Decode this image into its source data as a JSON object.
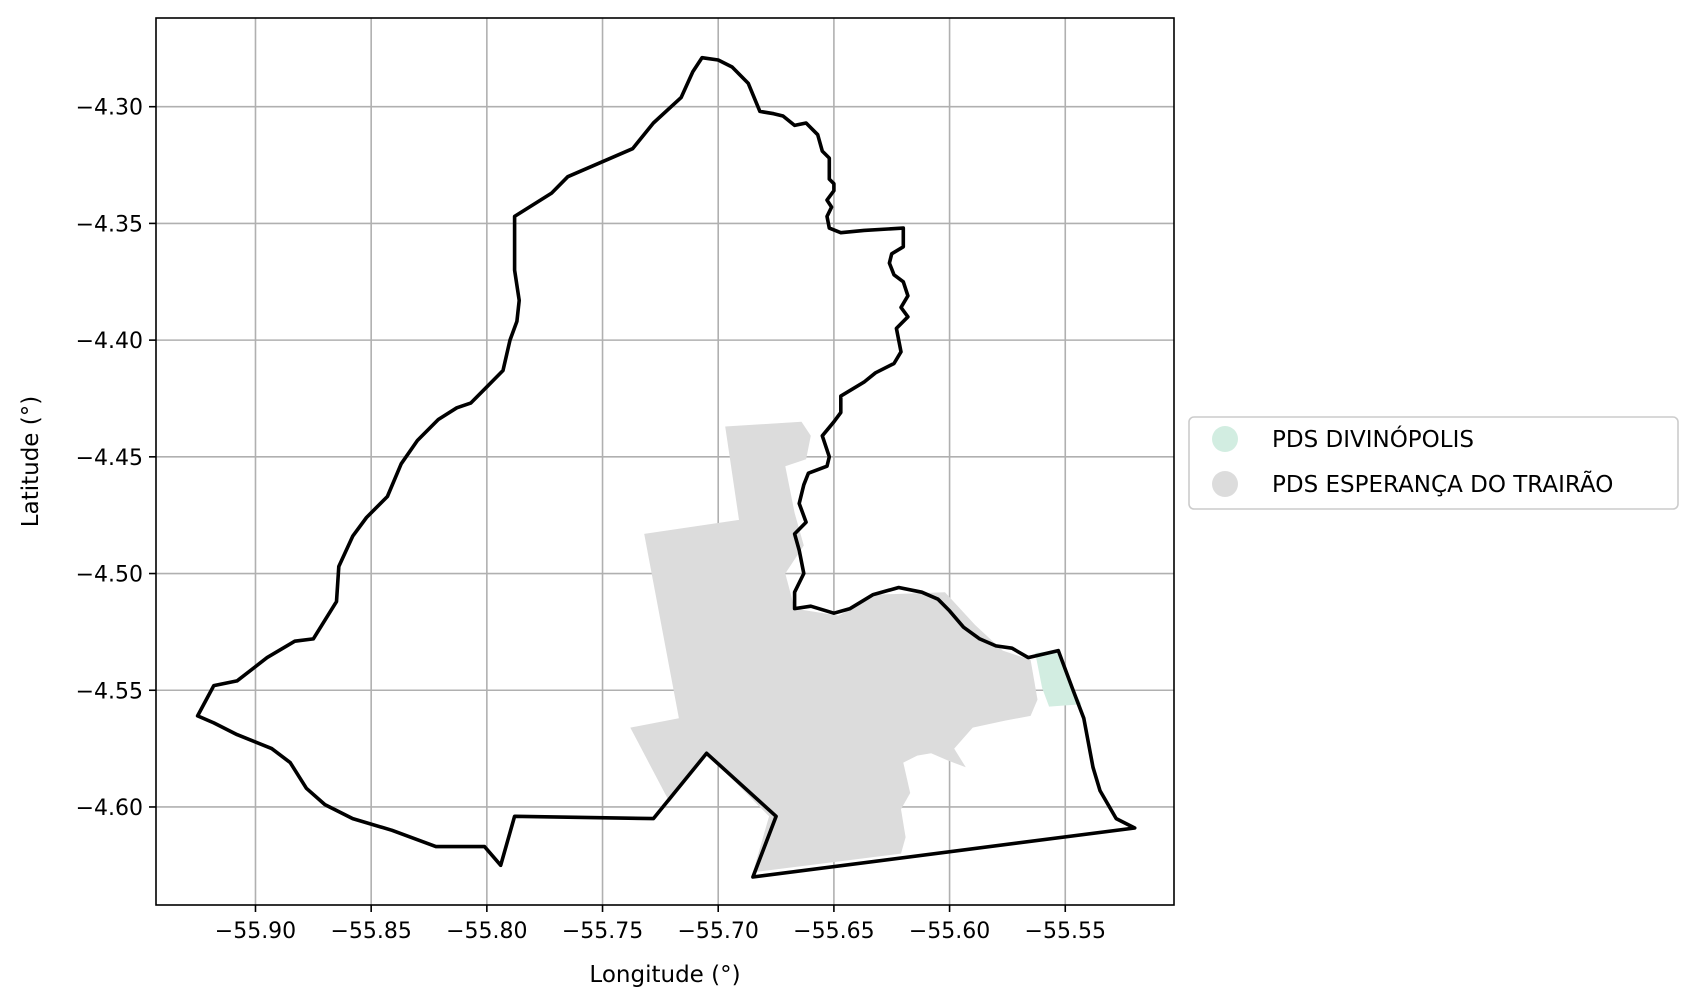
{
  "chart_data": {
    "type": "map",
    "xlabel": "Longitude (°)",
    "ylabel": "Latitude (°)",
    "xlim": [
      -55.943,
      -55.503
    ],
    "ylim": [
      -4.642,
      -4.262
    ],
    "grid": true,
    "legend_placement": "right",
    "x_ticks": [
      {
        "value": -55.9,
        "label": "−55.90"
      },
      {
        "value": -55.85,
        "label": "−55.85"
      },
      {
        "value": -55.8,
        "label": "−55.80"
      },
      {
        "value": -55.75,
        "label": "−55.75"
      },
      {
        "value": -55.7,
        "label": "−55.70"
      },
      {
        "value": -55.65,
        "label": "−55.65"
      },
      {
        "value": -55.6,
        "label": "−55.60"
      },
      {
        "value": -55.55,
        "label": "−55.55"
      }
    ],
    "y_ticks": [
      {
        "value": -4.3,
        "label": "−4.30"
      },
      {
        "value": -4.35,
        "label": "−4.35"
      },
      {
        "value": -4.4,
        "label": "−4.40"
      },
      {
        "value": -4.45,
        "label": "−4.45"
      },
      {
        "value": -4.5,
        "label": "−4.50"
      },
      {
        "value": -4.55,
        "label": "−4.55"
      },
      {
        "value": -4.6,
        "label": "−4.60"
      }
    ],
    "series": [
      {
        "name": "PDS DIVINÓPOLIS",
        "color": "#d2ede1",
        "polygon": [
          [
            -55.563,
            -4.534
          ],
          [
            -55.554,
            -4.533
          ],
          [
            -55.548,
            -4.547
          ],
          [
            -55.543,
            -4.556
          ],
          [
            -55.557,
            -4.557
          ],
          [
            -55.56,
            -4.549
          ],
          [
            -55.563,
            -4.534
          ]
        ]
      },
      {
        "name": "PDS ESPERANÇA DO TRAIRÃO",
        "color": "#dcdcdc",
        "polygon": [
          [
            -55.697,
            -4.437
          ],
          [
            -55.664,
            -4.435
          ],
          [
            -55.66,
            -4.441
          ],
          [
            -55.662,
            -4.451
          ],
          [
            -55.671,
            -4.454
          ],
          [
            -55.667,
            -4.474
          ],
          [
            -55.663,
            -4.488
          ],
          [
            -55.671,
            -4.5
          ],
          [
            -55.667,
            -4.515
          ],
          [
            -55.648,
            -4.518
          ],
          [
            -55.631,
            -4.509
          ],
          [
            -55.602,
            -4.508
          ],
          [
            -55.589,
            -4.522
          ],
          [
            -55.577,
            -4.533
          ],
          [
            -55.565,
            -4.537
          ],
          [
            -55.562,
            -4.554
          ],
          [
            -55.565,
            -4.561
          ],
          [
            -55.576,
            -4.563
          ],
          [
            -55.59,
            -4.566
          ],
          [
            -55.598,
            -4.575
          ],
          [
            -55.593,
            -4.583
          ],
          [
            -55.601,
            -4.58
          ],
          [
            -55.608,
            -4.577
          ],
          [
            -55.614,
            -4.578
          ],
          [
            -55.62,
            -4.581
          ],
          [
            -55.617,
            -4.594
          ],
          [
            -55.621,
            -4.601
          ],
          [
            -55.619,
            -4.613
          ],
          [
            -55.621,
            -4.62
          ],
          [
            -55.685,
            -4.628
          ],
          [
            -55.678,
            -4.604
          ],
          [
            -55.705,
            -4.577
          ],
          [
            -55.721,
            -4.598
          ],
          [
            -55.738,
            -4.566
          ],
          [
            -55.717,
            -4.562
          ],
          [
            -55.732,
            -4.483
          ],
          [
            -55.691,
            -4.477
          ],
          [
            -55.697,
            -4.437
          ]
        ]
      }
    ],
    "boundary": [
      [
        -55.925,
        -4.561
      ],
      [
        -55.918,
        -4.548
      ],
      [
        -55.908,
        -4.546
      ],
      [
        -55.895,
        -4.536
      ],
      [
        -55.883,
        -4.529
      ],
      [
        -55.875,
        -4.528
      ],
      [
        -55.865,
        -4.512
      ],
      [
        -55.864,
        -4.497
      ],
      [
        -55.858,
        -4.484
      ],
      [
        -55.852,
        -4.476
      ],
      [
        -55.843,
        -4.467
      ],
      [
        -55.837,
        -4.453
      ],
      [
        -55.83,
        -4.443
      ],
      [
        -55.821,
        -4.434
      ],
      [
        -55.813,
        -4.429
      ],
      [
        -55.807,
        -4.427
      ],
      [
        -55.8,
        -4.42
      ],
      [
        -55.793,
        -4.413
      ],
      [
        -55.79,
        -4.4
      ],
      [
        -55.787,
        -4.392
      ],
      [
        -55.786,
        -4.383
      ],
      [
        -55.788,
        -4.37
      ],
      [
        -55.788,
        -4.347
      ],
      [
        -55.772,
        -4.337
      ],
      [
        -55.765,
        -4.33
      ],
      [
        -55.737,
        -4.318
      ],
      [
        -55.728,
        -4.307
      ],
      [
        -55.716,
        -4.296
      ],
      [
        -55.711,
        -4.285
      ],
      [
        -55.707,
        -4.279
      ],
      [
        -55.7,
        -4.28
      ],
      [
        -55.694,
        -4.283
      ],
      [
        -55.687,
        -4.29
      ],
      [
        -55.682,
        -4.302
      ],
      [
        -55.676,
        -4.303
      ],
      [
        -55.672,
        -4.304
      ],
      [
        -55.667,
        -4.308
      ],
      [
        -55.662,
        -4.307
      ],
      [
        -55.657,
        -4.312
      ],
      [
        -55.655,
        -4.319
      ],
      [
        -55.652,
        -4.322
      ],
      [
        -55.652,
        -4.331
      ],
      [
        -55.65,
        -4.333
      ],
      [
        -55.65,
        -4.336
      ],
      [
        -55.653,
        -4.34
      ],
      [
        -55.651,
        -4.343
      ],
      [
        -55.653,
        -4.347
      ],
      [
        -55.652,
        -4.352
      ],
      [
        -55.647,
        -4.354
      ],
      [
        -55.637,
        -4.353
      ],
      [
        -55.62,
        -4.352
      ],
      [
        -55.62,
        -4.36
      ],
      [
        -55.625,
        -4.363
      ],
      [
        -55.626,
        -4.367
      ],
      [
        -55.624,
        -4.372
      ],
      [
        -55.62,
        -4.375
      ],
      [
        -55.618,
        -4.381
      ],
      [
        -55.621,
        -4.386
      ],
      [
        -55.618,
        -4.39
      ],
      [
        -55.623,
        -4.395
      ],
      [
        -55.621,
        -4.405
      ],
      [
        -55.624,
        -4.41
      ],
      [
        -55.632,
        -4.414
      ],
      [
        -55.637,
        -4.418
      ],
      [
        -55.647,
        -4.424
      ],
      [
        -55.647,
        -4.431
      ],
      [
        -55.65,
        -4.435
      ],
      [
        -55.655,
        -4.441
      ],
      [
        -55.652,
        -4.45
      ],
      [
        -55.653,
        -4.454
      ],
      [
        -55.661,
        -4.457
      ],
      [
        -55.663,
        -4.462
      ],
      [
        -55.665,
        -4.47
      ],
      [
        -55.662,
        -4.478
      ],
      [
        -55.667,
        -4.483
      ],
      [
        -55.665,
        -4.49
      ],
      [
        -55.663,
        -4.5
      ],
      [
        -55.667,
        -4.508
      ],
      [
        -55.667,
        -4.515
      ],
      [
        -55.66,
        -4.514
      ],
      [
        -55.65,
        -4.517
      ],
      [
        -55.643,
        -4.515
      ],
      [
        -55.633,
        -4.509
      ],
      [
        -55.622,
        -4.506
      ],
      [
        -55.612,
        -4.508
      ],
      [
        -55.605,
        -4.511
      ],
      [
        -55.6,
        -4.516
      ],
      [
        -55.594,
        -4.523
      ],
      [
        -55.587,
        -4.528
      ],
      [
        -55.58,
        -4.531
      ],
      [
        -55.573,
        -4.532
      ],
      [
        -55.566,
        -4.536
      ],
      [
        -55.553,
        -4.533
      ],
      [
        -55.547,
        -4.549
      ],
      [
        -55.542,
        -4.562
      ],
      [
        -55.538,
        -4.583
      ],
      [
        -55.535,
        -4.593
      ],
      [
        -55.528,
        -4.605
      ],
      [
        -55.52,
        -4.609
      ],
      [
        -55.685,
        -4.63
      ],
      [
        -55.675,
        -4.604
      ],
      [
        -55.705,
        -4.577
      ],
      [
        -55.728,
        -4.605
      ],
      [
        -55.788,
        -4.604
      ],
      [
        -55.794,
        -4.625
      ],
      [
        -55.801,
        -4.617
      ],
      [
        -55.822,
        -4.617
      ],
      [
        -55.841,
        -4.61
      ],
      [
        -55.858,
        -4.605
      ],
      [
        -55.87,
        -4.599
      ],
      [
        -55.878,
        -4.592
      ],
      [
        -55.885,
        -4.581
      ],
      [
        -55.893,
        -4.575
      ],
      [
        -55.908,
        -4.569
      ],
      [
        -55.918,
        -4.564
      ],
      [
        -55.925,
        -4.561
      ]
    ]
  }
}
